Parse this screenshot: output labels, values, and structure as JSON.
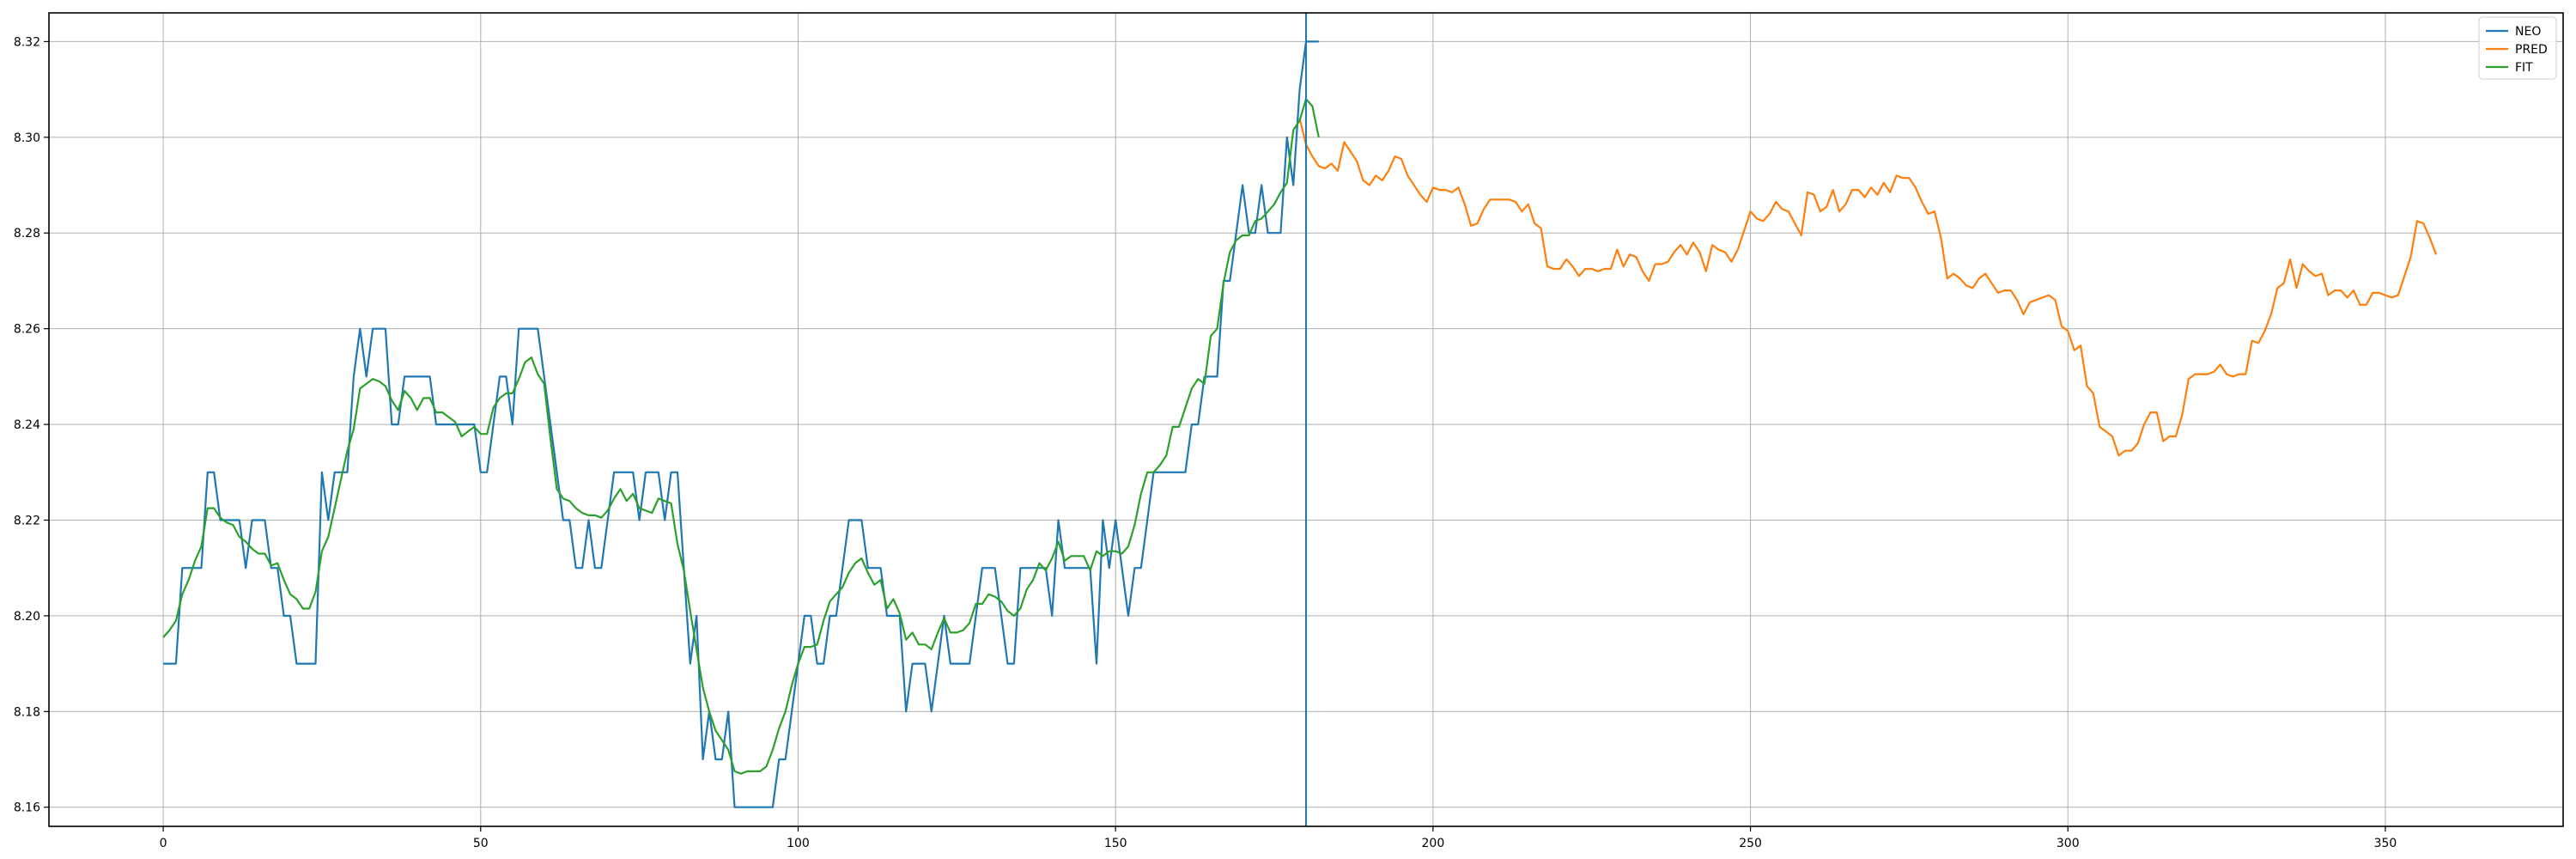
{
  "chart_data": {
    "type": "line",
    "xlim": [
      -18,
      378
    ],
    "ylim": [
      8.156,
      8.326
    ],
    "x_ticks": [
      0,
      50,
      100,
      150,
      200,
      250,
      300,
      350
    ],
    "y_ticks": [
      8.16,
      8.18,
      8.2,
      8.22,
      8.24,
      8.26,
      8.28,
      8.3,
      8.32
    ],
    "y_tick_labels": [
      "8.16",
      "8.18",
      "8.20",
      "8.22",
      "8.24",
      "8.26",
      "8.28",
      "8.30",
      "8.32"
    ],
    "grid": true,
    "legend_position": "top-right",
    "vline_x": 180,
    "vline_color": "#1f77b4",
    "series": [
      {
        "name": "NEO",
        "color": "#1f77b4",
        "x_start": 0,
        "values": [
          8.19,
          8.19,
          8.19,
          8.21,
          8.21,
          8.21,
          8.21,
          8.23,
          8.23,
          8.22,
          8.22,
          8.22,
          8.22,
          8.21,
          8.22,
          8.22,
          8.22,
          8.21,
          8.21,
          8.2,
          8.2,
          8.19,
          8.19,
          8.19,
          8.19,
          8.23,
          8.22,
          8.23,
          8.23,
          8.23,
          8.25,
          8.26,
          8.25,
          8.26,
          8.26,
          8.26,
          8.24,
          8.24,
          8.25,
          8.25,
          8.25,
          8.25,
          8.25,
          8.24,
          8.24,
          8.24,
          8.24,
          8.24,
          8.24,
          8.24,
          8.23,
          8.23,
          8.24,
          8.25,
          8.25,
          8.24,
          8.26,
          8.26,
          8.26,
          8.26,
          8.25,
          8.24,
          8.23,
          8.22,
          8.22,
          8.21,
          8.21,
          8.22,
          8.21,
          8.21,
          8.22,
          8.23,
          8.23,
          8.23,
          8.23,
          8.22,
          8.23,
          8.23,
          8.23,
          8.22,
          8.23,
          8.23,
          8.21,
          8.19,
          8.2,
          8.17,
          8.18,
          8.17,
          8.17,
          8.18,
          8.16,
          8.16,
          8.16,
          8.16,
          8.16,
          8.16,
          8.16,
          8.17,
          8.17,
          8.18,
          8.19,
          8.2,
          8.2,
          8.19,
          8.19,
          8.2,
          8.2,
          8.21,
          8.22,
          8.22,
          8.22,
          8.21,
          8.21,
          8.21,
          8.2,
          8.2,
          8.2,
          8.18,
          8.19,
          8.19,
          8.19,
          8.18,
          8.19,
          8.2,
          8.19,
          8.19,
          8.19,
          8.19,
          8.2,
          8.21,
          8.21,
          8.21,
          8.2,
          8.19,
          8.19,
          8.21,
          8.21,
          8.21,
          8.21,
          8.21,
          8.2,
          8.22,
          8.21,
          8.21,
          8.21,
          8.21,
          8.21,
          8.19,
          8.22,
          8.21,
          8.22,
          8.21,
          8.2,
          8.21,
          8.21,
          8.22,
          8.23,
          8.23,
          8.23,
          8.23,
          8.23,
          8.23,
          8.24,
          8.24,
          8.25,
          8.25,
          8.25,
          8.27,
          8.27,
          8.28,
          8.29,
          8.28,
          8.28,
          8.29,
          8.28,
          8.28,
          8.28,
          8.3,
          8.29,
          8.31,
          8.32,
          8.32,
          8.32
        ]
      },
      {
        "name": "PRED",
        "color": "#ff7f0e",
        "x_start": 179,
        "values": [
          8.304,
          8.2985,
          8.296,
          8.294,
          8.2935,
          8.2945,
          8.293,
          8.299,
          8.297,
          8.295,
          8.291,
          8.29,
          8.292,
          8.291,
          8.293,
          8.296,
          8.2955,
          8.292,
          8.29,
          8.288,
          8.2865,
          8.2895,
          8.289,
          8.289,
          8.2885,
          8.2895,
          8.286,
          8.2815,
          8.282,
          8.285,
          8.287,
          8.287,
          8.287,
          8.287,
          8.2865,
          8.2845,
          8.286,
          8.282,
          8.281,
          8.273,
          8.2725,
          8.2725,
          8.2745,
          8.273,
          8.271,
          8.2725,
          8.2725,
          8.272,
          8.2725,
          8.2725,
          8.2765,
          8.273,
          8.2755,
          8.275,
          8.272,
          8.27,
          8.2735,
          8.2735,
          8.274,
          8.276,
          8.2775,
          8.2755,
          8.278,
          8.276,
          8.272,
          8.2775,
          8.2765,
          8.276,
          8.274,
          8.2765,
          8.2805,
          8.2845,
          8.283,
          8.2825,
          8.284,
          8.2865,
          8.285,
          8.2845,
          8.282,
          8.2795,
          8.2885,
          8.288,
          8.2845,
          8.2855,
          8.289,
          8.2845,
          8.286,
          8.289,
          8.289,
          8.2875,
          8.2895,
          8.288,
          8.2905,
          8.2885,
          8.292,
          8.2915,
          8.2915,
          8.2895,
          8.2865,
          8.284,
          8.2845,
          8.279,
          8.2705,
          8.2715,
          8.2705,
          8.269,
          8.2685,
          8.2705,
          8.2715,
          8.2695,
          8.2675,
          8.268,
          8.268,
          8.266,
          8.263,
          8.2655,
          8.266,
          8.2665,
          8.267,
          8.266,
          8.2605,
          8.2595,
          8.2555,
          8.2565,
          8.248,
          8.2465,
          8.2395,
          8.2385,
          8.2375,
          8.2335,
          8.2345,
          8.2345,
          8.236,
          8.24,
          8.2425,
          8.2425,
          8.2365,
          8.2375,
          8.2375,
          8.242,
          8.2495,
          8.2505,
          8.2505,
          8.2505,
          8.251,
          8.2525,
          8.2505,
          8.25,
          8.2505,
          8.2505,
          8.2575,
          8.257,
          8.2595,
          8.263,
          8.2685,
          8.2695,
          8.2745,
          8.2685,
          8.2735,
          8.272,
          8.271,
          8.2715,
          8.267,
          8.268,
          8.268,
          8.2665,
          8.268,
          8.265,
          8.265,
          8.2675,
          8.2675,
          8.267,
          8.2665,
          8.267,
          8.271,
          8.275,
          8.2825,
          8.282,
          8.279,
          8.2755
        ]
      },
      {
        "name": "FIT",
        "color": "#2ca02c",
        "x_start": 0,
        "values": [
          8.1955,
          8.197,
          8.199,
          8.2045,
          8.2075,
          8.2115,
          8.2145,
          8.2225,
          8.2225,
          8.2205,
          8.2195,
          8.219,
          8.2165,
          8.2155,
          8.214,
          8.213,
          8.213,
          8.2105,
          8.211,
          8.2075,
          8.2045,
          8.2035,
          8.2015,
          8.2015,
          8.205,
          8.2135,
          8.2165,
          8.2225,
          8.2285,
          8.2345,
          8.239,
          8.2475,
          8.2485,
          8.2495,
          8.249,
          8.248,
          8.245,
          8.243,
          8.247,
          8.2455,
          8.243,
          8.2455,
          8.2455,
          8.2425,
          8.2425,
          8.2415,
          8.2405,
          8.2375,
          8.2385,
          8.2395,
          8.238,
          8.238,
          8.2435,
          8.2455,
          8.2465,
          8.2465,
          8.2495,
          8.253,
          8.254,
          8.2505,
          8.2485,
          8.237,
          8.2265,
          8.2245,
          8.224,
          8.2225,
          8.2215,
          8.221,
          8.221,
          8.2205,
          8.222,
          8.2245,
          8.2265,
          8.224,
          8.2255,
          8.2225,
          8.222,
          8.2215,
          8.2245,
          8.224,
          8.2235,
          8.215,
          8.2095,
          8.201,
          8.193,
          8.185,
          8.18,
          8.176,
          8.174,
          8.172,
          8.1675,
          8.167,
          8.1675,
          8.1675,
          8.1675,
          8.1685,
          8.172,
          8.1765,
          8.18,
          8.1855,
          8.19,
          8.1935,
          8.1935,
          8.194,
          8.199,
          8.203,
          8.2045,
          8.206,
          8.209,
          8.211,
          8.212,
          8.209,
          8.2065,
          8.2075,
          8.2015,
          8.2035,
          8.2005,
          8.195,
          8.1965,
          8.194,
          8.194,
          8.193,
          8.1965,
          8.1995,
          8.1965,
          8.1965,
          8.197,
          8.1985,
          8.2025,
          8.2025,
          8.2045,
          8.204,
          8.203,
          8.201,
          8.2,
          8.2015,
          8.2055,
          8.2075,
          8.211,
          8.2095,
          8.212,
          8.2155,
          8.2115,
          8.2125,
          8.2125,
          8.2125,
          8.2095,
          8.2135,
          8.2125,
          8.2135,
          8.2135,
          8.213,
          8.2145,
          8.219,
          8.2255,
          8.23,
          8.23,
          8.2315,
          8.2335,
          8.2395,
          8.2395,
          8.2435,
          8.2475,
          8.2495,
          8.2485,
          8.2585,
          8.26,
          8.2695,
          8.276,
          8.2785,
          8.2795,
          8.2795,
          8.2825,
          8.283,
          8.2845,
          8.286,
          8.2885,
          8.2905,
          8.3015,
          8.3035,
          8.308,
          8.3065,
          8.3
        ]
      }
    ]
  }
}
